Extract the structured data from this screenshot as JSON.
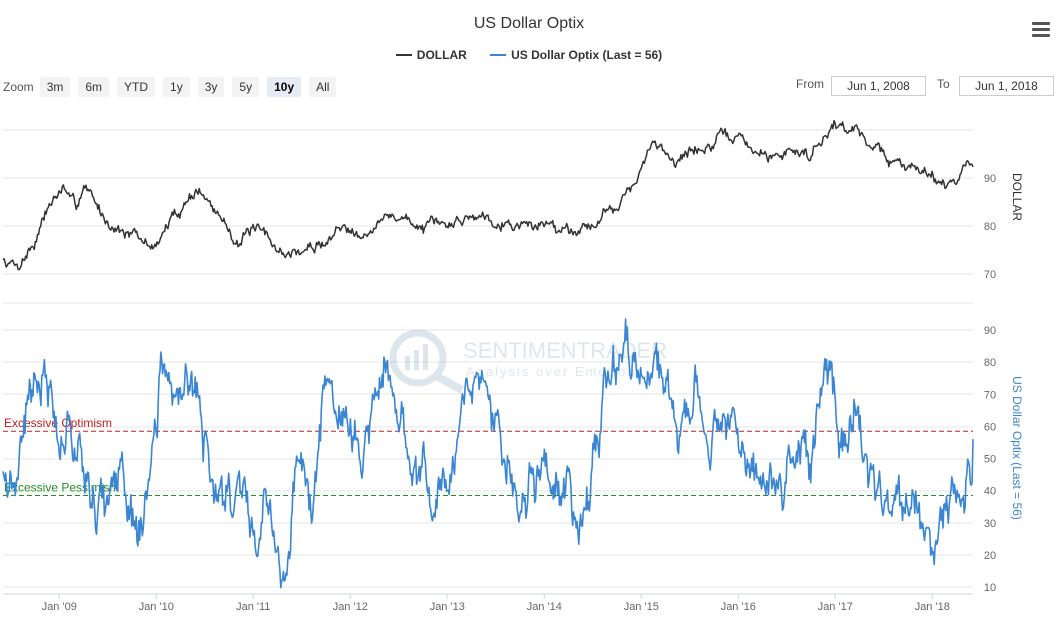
{
  "header": {
    "title": "US Dollar Optix",
    "legend": [
      {
        "label": "DOLLAR",
        "color": "#333333"
      },
      {
        "label": "US Dollar Optix (Last = 56)",
        "color": "#3a86d3"
      }
    ]
  },
  "toolbar": {
    "zoom_label": "Zoom",
    "zoom_buttons": [
      "3m",
      "6m",
      "YTD",
      "1y",
      "3y",
      "5y",
      "10y",
      "All"
    ],
    "active_zoom": "10y",
    "from_label": "From",
    "from_value": "Jun 1, 2008",
    "to_label": "To",
    "to_value": "Jun 1, 2018"
  },
  "watermark": {
    "brand": "SENTIMENTRADER",
    "tagline": "Analysis over Emotion"
  },
  "chart_data": [
    {
      "type": "line",
      "series": [
        {
          "name": "DOLLAR",
          "color": "#333333"
        }
      ],
      "ylabel": "DOLLAR",
      "yticks": [
        70,
        80,
        90
      ],
      "ylim": [
        66.5,
        99
      ],
      "x_start": 2008.42,
      "x_end": 2018.42,
      "anchors": [
        [
          2008.42,
          73
        ],
        [
          2008.58,
          72
        ],
        [
          2008.75,
          77
        ],
        [
          2008.88,
          84
        ],
        [
          2009.05,
          88
        ],
        [
          2009.17,
          83
        ],
        [
          2009.25,
          89
        ],
        [
          2009.45,
          82
        ],
        [
          2009.6,
          80
        ],
        [
          2009.9,
          76
        ],
        [
          2010.0,
          76
        ],
        [
          2010.15,
          81
        ],
        [
          2010.3,
          85
        ],
        [
          2010.42,
          88
        ],
        [
          2010.6,
          83
        ],
        [
          2010.85,
          77
        ],
        [
          2011.0,
          79
        ],
        [
          2011.15,
          77
        ],
        [
          2011.35,
          74
        ],
        [
          2011.55,
          75
        ],
        [
          2011.7,
          76
        ],
        [
          2011.85,
          79
        ],
        [
          2012.0,
          80
        ],
        [
          2012.2,
          79
        ],
        [
          2012.45,
          82.5
        ],
        [
          2012.6,
          81
        ],
        [
          2012.8,
          79.5
        ],
        [
          2013.0,
          80
        ],
        [
          2013.2,
          82
        ],
        [
          2013.4,
          82.5
        ],
        [
          2013.6,
          81
        ],
        [
          2013.85,
          80
        ],
        [
          2014.0,
          80.5
        ],
        [
          2014.25,
          79.5
        ],
        [
          2014.5,
          80.5
        ],
        [
          2014.65,
          83
        ],
        [
          2014.8,
          86
        ],
        [
          2014.95,
          89
        ],
        [
          2015.1,
          96
        ],
        [
          2015.2,
          97
        ],
        [
          2015.35,
          94
        ],
        [
          2015.6,
          96
        ],
        [
          2015.85,
          98
        ],
        [
          2016.0,
          98.5
        ],
        [
          2016.2,
          95
        ],
        [
          2016.35,
          94
        ],
        [
          2016.55,
          96
        ],
        [
          2016.75,
          95
        ],
        [
          2016.9,
          100
        ],
        [
          2017.0,
          101.5
        ],
        [
          2017.2,
          100
        ],
        [
          2017.4,
          97
        ],
        [
          2017.6,
          93
        ],
        [
          2017.75,
          92
        ],
        [
          2017.9,
          93
        ],
        [
          2018.0,
          91
        ],
        [
          2018.1,
          89
        ],
        [
          2018.25,
          90
        ],
        [
          2018.42,
          94
        ]
      ]
    },
    {
      "type": "line",
      "series": [
        {
          "name": "US Dollar Optix (Last = 56)",
          "color": "#3a86d3"
        }
      ],
      "ylabel": "US Dollar Optix (Last = 56)",
      "yticks": [
        10,
        20,
        30,
        40,
        50,
        60,
        70,
        80,
        90
      ],
      "ylim": [
        10,
        90
      ],
      "last": 56,
      "thresholds": [
        {
          "label": "Excessive Optimism",
          "value": 58.5,
          "color": "#c02020"
        },
        {
          "label": "Excessive Pessimism",
          "value": 38.5,
          "color": "#209020"
        }
      ],
      "anchors": [
        [
          2008.42,
          50
        ],
        [
          2008.55,
          42
        ],
        [
          2008.7,
          70
        ],
        [
          2008.85,
          78
        ],
        [
          2009.0,
          60
        ],
        [
          2009.1,
          62
        ],
        [
          2009.2,
          55
        ],
        [
          2009.35,
          40
        ],
        [
          2009.5,
          33
        ],
        [
          2009.65,
          45
        ],
        [
          2009.8,
          28
        ],
        [
          2009.95,
          45
        ],
        [
          2010.05,
          75
        ],
        [
          2010.15,
          65
        ],
        [
          2010.3,
          72
        ],
        [
          2010.42,
          70
        ],
        [
          2010.55,
          45
        ],
        [
          2010.7,
          38
        ],
        [
          2010.9,
          42
        ],
        [
          2011.0,
          30
        ],
        [
          2011.15,
          35
        ],
        [
          2011.25,
          22
        ],
        [
          2011.35,
          20
        ],
        [
          2011.45,
          48
        ],
        [
          2011.6,
          32
        ],
        [
          2011.75,
          75
        ],
        [
          2011.85,
          62
        ],
        [
          2011.95,
          70
        ],
        [
          2012.1,
          48
        ],
        [
          2012.2,
          62
        ],
        [
          2012.35,
          80
        ],
        [
          2012.45,
          72
        ],
        [
          2012.6,
          45
        ],
        [
          2012.75,
          50
        ],
        [
          2012.9,
          35
        ],
        [
          2013.05,
          55
        ],
        [
          2013.2,
          72
        ],
        [
          2013.3,
          75
        ],
        [
          2013.45,
          62
        ],
        [
          2013.6,
          48
        ],
        [
          2013.75,
          32
        ],
        [
          2013.9,
          45
        ],
        [
          2014.0,
          50
        ],
        [
          2014.1,
          35
        ],
        [
          2014.25,
          42
        ],
        [
          2014.35,
          32
        ],
        [
          2014.5,
          45
        ],
        [
          2014.65,
          72
        ],
        [
          2014.85,
          82
        ],
        [
          2015.0,
          75
        ],
        [
          2015.1,
          85
        ],
        [
          2015.25,
          72
        ],
        [
          2015.4,
          55
        ],
        [
          2015.55,
          70
        ],
        [
          2015.7,
          50
        ],
        [
          2015.85,
          65
        ],
        [
          2016.0,
          60
        ],
        [
          2016.15,
          45
        ],
        [
          2016.3,
          48
        ],
        [
          2016.45,
          42
        ],
        [
          2016.6,
          58
        ],
        [
          2016.75,
          42
        ],
        [
          2016.85,
          72
        ],
        [
          2016.95,
          78
        ],
        [
          2017.05,
          55
        ],
        [
          2017.2,
          65
        ],
        [
          2017.35,
          45
        ],
        [
          2017.45,
          50
        ],
        [
          2017.55,
          30
        ],
        [
          2017.7,
          28
        ],
        [
          2017.8,
          42
        ],
        [
          2017.95,
          30
        ],
        [
          2018.05,
          22
        ],
        [
          2018.15,
          40
        ],
        [
          2018.3,
          35
        ],
        [
          2018.42,
          56
        ]
      ]
    }
  ],
  "x_axis": {
    "labels": [
      "Jan '09",
      "Jan '10",
      "Jan '11",
      "Jan '12",
      "Jan '13",
      "Jan '14",
      "Jan '15",
      "Jan '16",
      "Jan '17",
      "Jan '18"
    ],
    "years": [
      2009,
      2010,
      2011,
      2012,
      2013,
      2014,
      2015,
      2016,
      2017,
      2018
    ]
  }
}
